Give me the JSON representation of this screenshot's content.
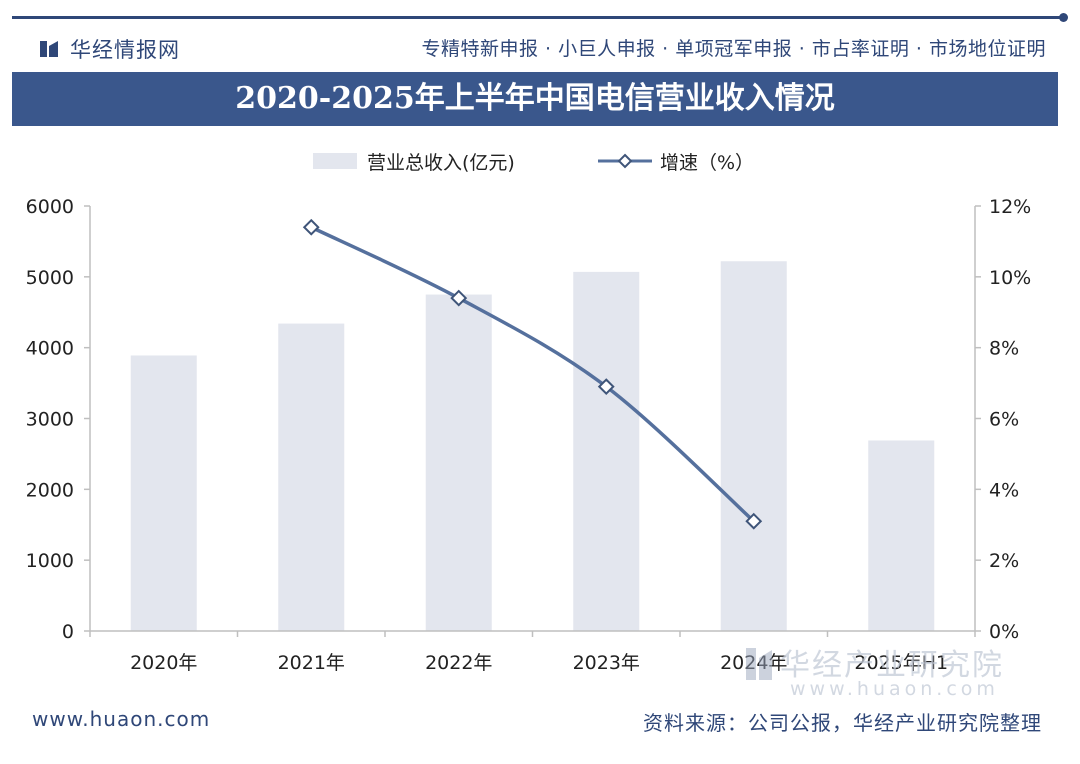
{
  "header": {
    "brand": "华经情报网",
    "services": "专精特新申报 · 小巨人申报 · 单项冠军申报 · 市占率证明 · 市场地位证明"
  },
  "colors": {
    "brand": "#2f4778",
    "title_band": "#3a578c",
    "bar": "#e3e6ee",
    "line": "#55709d"
  },
  "chart_data": {
    "type": "bar",
    "title": "2020-2025年上半年中国电信营业收入情况",
    "categories": [
      "2020年",
      "2021年",
      "2022年",
      "2023年",
      "2024年",
      "2025年H1"
    ],
    "series": [
      {
        "name": "营业总收入(亿元)",
        "type": "bar",
        "axis": "left",
        "values": [
          3890,
          4340,
          4750,
          5070,
          5220,
          2690
        ]
      },
      {
        "name": "增速（%）",
        "type": "line",
        "axis": "right",
        "values": [
          null,
          11.4,
          9.4,
          6.9,
          3.1,
          null
        ]
      }
    ],
    "y_left": {
      "min": 0,
      "max": 6000,
      "ticks": [
        "0",
        "1000",
        "2000",
        "3000",
        "4000",
        "5000",
        "6000"
      ]
    },
    "y_right": {
      "min": 0,
      "max": 12,
      "ticks": [
        "0%",
        "2%",
        "4%",
        "6%",
        "8%",
        "10%",
        "12%"
      ]
    },
    "legend": {
      "position": "top-center",
      "items": [
        "营业总收入(亿元)",
        "增速（%）"
      ]
    },
    "grid": false
  },
  "footer": {
    "url": "www.huaon.com",
    "source": "资料来源：公司公报，华经产业研究院整理"
  },
  "watermark": {
    "name": "华经产业研究院",
    "url": "www.huaon.com"
  }
}
